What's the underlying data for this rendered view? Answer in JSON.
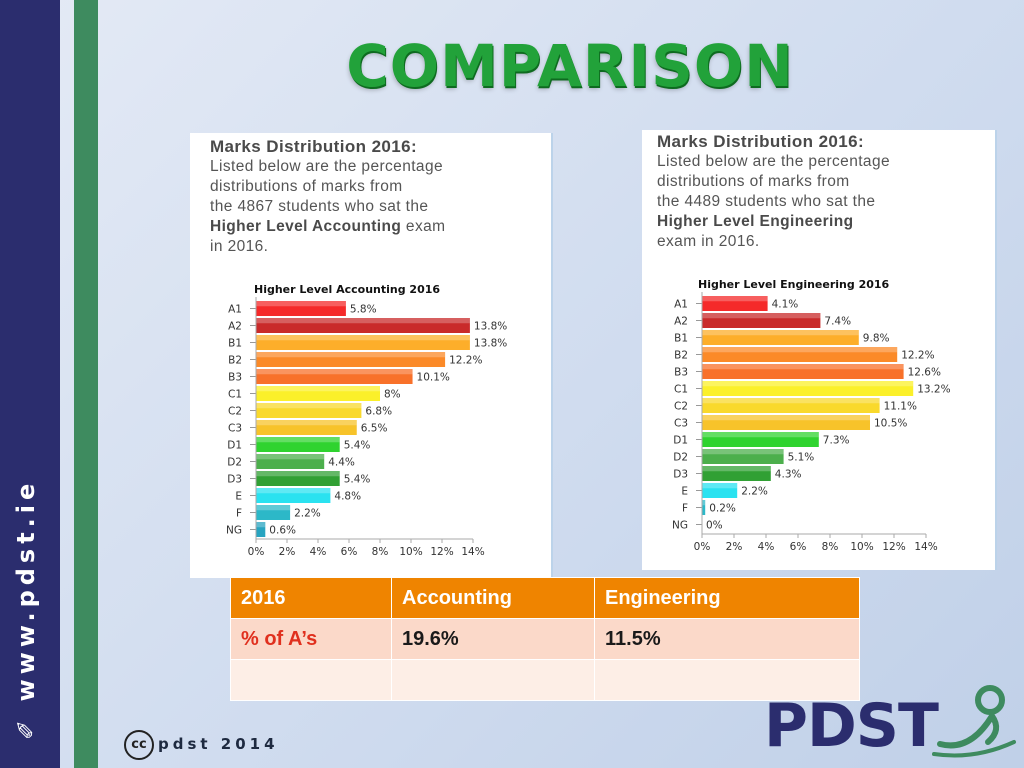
{
  "slide": {
    "title": "COMPARISON",
    "side_text": "www.pdst.ie",
    "footer": "pdst 2014",
    "cc_badge": "cc",
    "logo": "PDST"
  },
  "panels": [
    {
      "heading": "Marks Distribution 2016:",
      "line1": "Listed below are the percentage",
      "line2": "distributions of marks from",
      "line3_pre": "the 4867 students who sat the",
      "bold": "Higher Level Accounting",
      "line4_post": " exam",
      "line5": "in 2016."
    },
    {
      "heading": "Marks Distribution 2016:",
      "line1": "Listed below are the percentage",
      "line2": "distributions of marks from",
      "line3_pre": "the 4489 students who sat the",
      "bold": "Higher Level Engineering",
      "line4_post": "",
      "line5": "exam in 2016."
    }
  ],
  "chart_data": [
    {
      "type": "bar",
      "orientation": "horizontal",
      "title": "Higher Level Accounting 2016",
      "categories": [
        "A1",
        "A2",
        "B1",
        "B2",
        "B3",
        "C1",
        "C2",
        "C3",
        "D1",
        "D2",
        "D3",
        "E",
        "F",
        "NG"
      ],
      "values": [
        5.8,
        13.8,
        13.8,
        12.2,
        10.1,
        8,
        6.8,
        6.5,
        5.4,
        4.4,
        5.4,
        4.8,
        2.2,
        0.6
      ],
      "value_labels": [
        "5.8%",
        "13.8%",
        "13.8%",
        "12.2%",
        "10.1%",
        "8%",
        "6.8%",
        "6.5%",
        "5.4%",
        "4.4%",
        "5.4%",
        "4.8%",
        "2.2%",
        "0.6%"
      ],
      "xticks": [
        "0%",
        "2%",
        "4%",
        "6%",
        "8%",
        "10%",
        "12%",
        "14%"
      ],
      "xlim": [
        0,
        14
      ],
      "colors": [
        "#f52a2a",
        "#c92a2a",
        "#fdae2a",
        "#fb8a28",
        "#f8712a",
        "#fbf02a",
        "#f9d92c",
        "#f7c32a",
        "#2fd32f",
        "#4caf4c",
        "#31a034",
        "#2ae2f0",
        "#2cb8c8",
        "#28a4c0"
      ]
    },
    {
      "type": "bar",
      "orientation": "horizontal",
      "title": "Higher Level Engineering 2016",
      "categories": [
        "A1",
        "A2",
        "B1",
        "B2",
        "B3",
        "C1",
        "C2",
        "C3",
        "D1",
        "D2",
        "D3",
        "E",
        "F",
        "NG"
      ],
      "values": [
        4.1,
        7.4,
        9.8,
        12.2,
        12.6,
        13.2,
        11.1,
        10.5,
        7.3,
        5.1,
        4.3,
        2.2,
        0.2,
        0
      ],
      "value_labels": [
        "4.1%",
        "7.4%",
        "9.8%",
        "12.2%",
        "12.6%",
        "13.2%",
        "11.1%",
        "10.5%",
        "7.3%",
        "5.1%",
        "4.3%",
        "2.2%",
        "0.2%",
        "0%"
      ],
      "xticks": [
        "0%",
        "2%",
        "4%",
        "6%",
        "8%",
        "10%",
        "12%",
        "14%"
      ],
      "xlim": [
        0,
        14
      ],
      "colors": [
        "#f52a2a",
        "#c92a2a",
        "#fdae2a",
        "#fb8a28",
        "#f8712a",
        "#fbf02a",
        "#f9d92c",
        "#f7c32a",
        "#2fd32f",
        "#4caf4c",
        "#31a034",
        "#2ae2f0",
        "#2cb8c8",
        "#28a4c0"
      ]
    }
  ],
  "table": {
    "headers": [
      "2016",
      "Accounting",
      "Engineering"
    ],
    "rows": [
      [
        "% of A’s",
        "19.6%",
        "11.5%"
      ],
      [
        "",
        "",
        ""
      ]
    ]
  },
  "colors": {
    "sidebar": "#2b2d6e",
    "sidebar_accent": "#3e8b5f",
    "title": "#22a23a",
    "table_header": "#ef8400",
    "table_row": "#fbd9c9"
  }
}
